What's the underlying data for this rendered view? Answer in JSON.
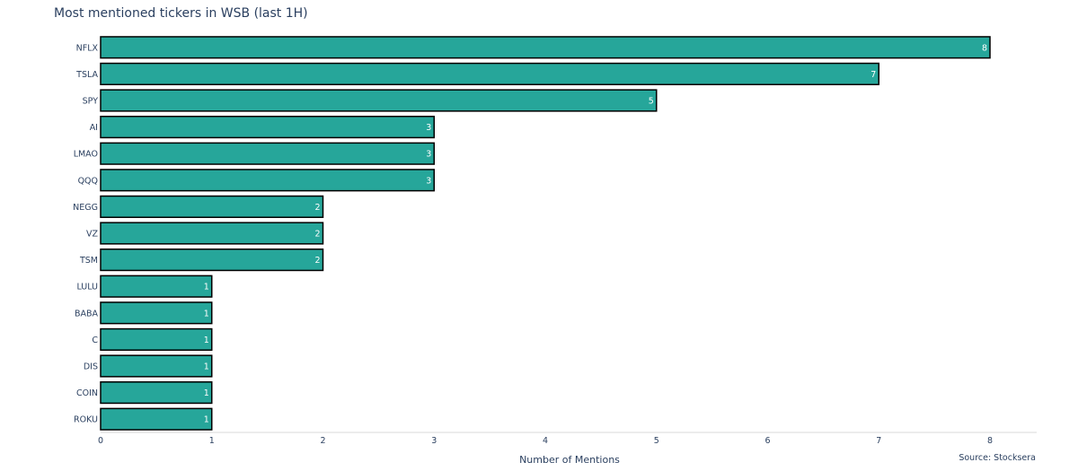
{
  "chart_data": {
    "type": "bar",
    "orientation": "horizontal",
    "title": "Most mentioned tickers in WSB (last 1H)",
    "xlabel": "Number of Mentions",
    "ylabel": "",
    "source": "Source: Stocksera",
    "categories": [
      "NFLX",
      "TSLA",
      "SPY",
      "AI",
      "LMAO",
      "QQQ",
      "NEGG",
      "VZ",
      "TSM",
      "LULU",
      "BABA",
      "C",
      "DIS",
      "COIN",
      "ROKU"
    ],
    "values": [
      8,
      7,
      5,
      3,
      3,
      3,
      2,
      2,
      2,
      1,
      1,
      1,
      1,
      1,
      1
    ],
    "xlim": [
      0,
      8.42
    ],
    "xticks": [
      0,
      1,
      2,
      3,
      4,
      5,
      6,
      7,
      8
    ],
    "grid": false,
    "legend": "none",
    "colors": {
      "bar": "#26a69a",
      "bar_outline": "#000000",
      "text": "#2a3f5f",
      "axis_line": "#d8d8d8"
    }
  }
}
